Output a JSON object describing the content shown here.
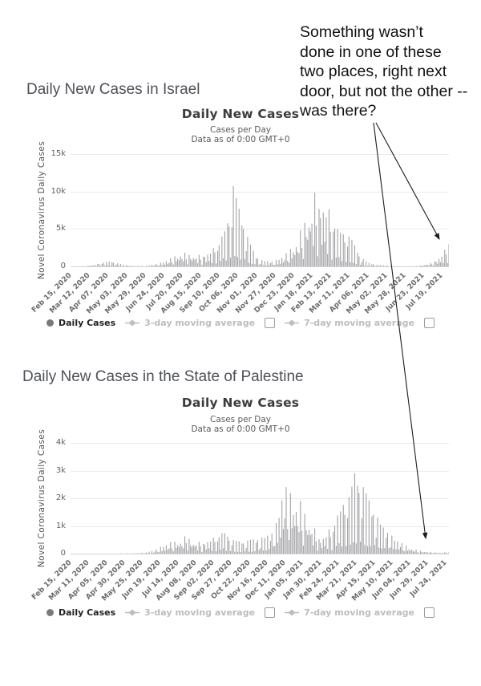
{
  "annotation": {
    "text": "Something wasn’t\ndone in one of these\ntwo places, right next\ndoor, but not the other --\nwas there?"
  },
  "legend": {
    "daily_cases": "Daily Cases",
    "ma3": "3-day moving average",
    "ma7": "7-day moving average",
    "ma3_checked": false,
    "ma7_checked": false
  },
  "colors": {
    "bar": "#a2a2a6",
    "heading": "#4e5158",
    "annotation_text": "#121212",
    "arrow": "#1c1c1c",
    "legend_active": "#222222",
    "legend_muted": "#bdbdbd",
    "gridline": "#ebebeb"
  },
  "chart_data": [
    {
      "type": "bar",
      "region": "Israel",
      "heading": "Daily New Cases in Israel",
      "title": "Daily New Cases",
      "subtitle1": "Cases per Day",
      "subtitle2": "Data as of 0:00 GMT+0",
      "ylabel": "Novel Coronavirus Daily Cases",
      "series_name": "Daily Cases",
      "ymax": 15000,
      "ytick_values": [
        15000,
        10000,
        5000,
        0
      ],
      "ytick_labels": [
        "15k",
        "10k",
        "5k",
        "0"
      ],
      "total_days": 530,
      "xtick_day_interval": 26,
      "xtick_labels": [
        "Feb 15, 2020",
        "Mar 12, 2020",
        "Apr 07, 2020",
        "May 03, 2020",
        "May 29, 2020",
        "Jun 24, 2020",
        "Jul 20, 2020",
        "Aug 15, 2020",
        "Sep 10, 2020",
        "Oct 06, 2020",
        "Nov 01, 2020",
        "Nov 27, 2020",
        "Dec 23, 2020",
        "Jan 18, 2021",
        "Feb 13, 2021",
        "Mar 11, 2021",
        "Apr 06, 2021",
        "May 02, 2021",
        "May 28, 2021",
        "Jun 23, 2021",
        "Jul 19, 2021"
      ],
      "envelope_points": [
        [
          0,
          0
        ],
        [
          20,
          30
        ],
        [
          35,
          250
        ],
        [
          45,
          550
        ],
        [
          55,
          700
        ],
        [
          65,
          450
        ],
        [
          75,
          200
        ],
        [
          90,
          50
        ],
        [
          105,
          80
        ],
        [
          118,
          250
        ],
        [
          130,
          600
        ],
        [
          142,
          1200
        ],
        [
          155,
          1900
        ],
        [
          168,
          1700
        ],
        [
          182,
          1500
        ],
        [
          195,
          2000
        ],
        [
          208,
          3300
        ],
        [
          216,
          5000
        ],
        [
          224,
          7500
        ],
        [
          228,
          11300
        ],
        [
          233,
          8600
        ],
        [
          240,
          6500
        ],
        [
          247,
          4200
        ],
        [
          254,
          2400
        ],
        [
          262,
          1100
        ],
        [
          270,
          750
        ],
        [
          284,
          650
        ],
        [
          295,
          1200
        ],
        [
          305,
          2000
        ],
        [
          315,
          3300
        ],
        [
          322,
          4800
        ],
        [
          330,
          7000
        ],
        [
          338,
          8800
        ],
        [
          343,
          10100
        ],
        [
          350,
          9200
        ],
        [
          358,
          8200
        ],
        [
          366,
          7000
        ],
        [
          374,
          5200
        ],
        [
          382,
          4500
        ],
        [
          390,
          4300
        ],
        [
          398,
          2800
        ],
        [
          406,
          1300
        ],
        [
          416,
          500
        ],
        [
          426,
          250
        ],
        [
          436,
          150
        ],
        [
          446,
          90
        ],
        [
          456,
          50
        ],
        [
          470,
          25
        ],
        [
          484,
          60
        ],
        [
          494,
          180
        ],
        [
          504,
          450
        ],
        [
          512,
          900
        ],
        [
          518,
          1400
        ],
        [
          524,
          2200
        ],
        [
          530,
          3900
        ]
      ]
    },
    {
      "type": "bar",
      "region": "State of Palestine",
      "heading": "Daily New Cases in the State of Palestine",
      "title": "Daily New Cases",
      "subtitle1": "Cases per Day",
      "subtitle2": "Data as of 0:00 GMT+0",
      "ylabel": "Novel Coronavirus Daily Cases",
      "series_name": "Daily Cases",
      "ymax": 4000,
      "ytick_values": [
        4000,
        3000,
        2000,
        1000,
        0
      ],
      "ytick_labels": [
        "4k",
        "3k",
        "2k",
        "1k",
        "0"
      ],
      "total_days": 530,
      "xtick_day_interval": 25,
      "xtick_labels": [
        "Feb 15, 2020",
        "Mar 11, 2020",
        "Apr 05, 2020",
        "Apr 30, 2020",
        "May 25, 2020",
        "Jun 19, 2020",
        "Jul 14, 2020",
        "Aug 08, 2020",
        "Sep 02, 2020",
        "Sep 27, 2020",
        "Oct 22, 2020",
        "Nov 16, 2020",
        "Dec 11, 2020",
        "Jan 05, 2021",
        "Jan 30, 2021",
        "Feb 24, 2021",
        "Mar 21, 2021",
        "Apr 15, 2021",
        "May 10, 2021",
        "Jun 04, 2021",
        "Jun 29, 2021",
        "Jul 24, 2021"
      ],
      "envelope_points": [
        [
          0,
          0
        ],
        [
          60,
          5
        ],
        [
          90,
          15
        ],
        [
          105,
          40
        ],
        [
          118,
          120
        ],
        [
          128,
          280
        ],
        [
          140,
          420
        ],
        [
          150,
          480
        ],
        [
          158,
          520
        ],
        [
          163,
          780
        ],
        [
          168,
          520
        ],
        [
          178,
          430
        ],
        [
          188,
          450
        ],
        [
          198,
          560
        ],
        [
          208,
          700
        ],
        [
          215,
          820
        ],
        [
          222,
          600
        ],
        [
          232,
          460
        ],
        [
          242,
          430
        ],
        [
          252,
          500
        ],
        [
          262,
          530
        ],
        [
          272,
          600
        ],
        [
          282,
          750
        ],
        [
          288,
          1100
        ],
        [
          293,
          1700
        ],
        [
          298,
          2500
        ],
        [
          306,
          2300
        ],
        [
          314,
          2100
        ],
        [
          322,
          1900
        ],
        [
          330,
          1500
        ],
        [
          340,
          1000
        ],
        [
          350,
          550
        ],
        [
          358,
          750
        ],
        [
          366,
          1000
        ],
        [
          375,
          1500
        ],
        [
          385,
          2000
        ],
        [
          393,
          2300
        ],
        [
          398,
          2900
        ],
        [
          405,
          2700
        ],
        [
          412,
          2300
        ],
        [
          420,
          1800
        ],
        [
          428,
          1400
        ],
        [
          436,
          1000
        ],
        [
          444,
          800
        ],
        [
          452,
          600
        ],
        [
          462,
          420
        ],
        [
          472,
          260
        ],
        [
          482,
          160
        ],
        [
          492,
          100
        ],
        [
          502,
          70
        ],
        [
          512,
          45
        ],
        [
          520,
          35
        ],
        [
          530,
          70
        ]
      ]
    }
  ]
}
